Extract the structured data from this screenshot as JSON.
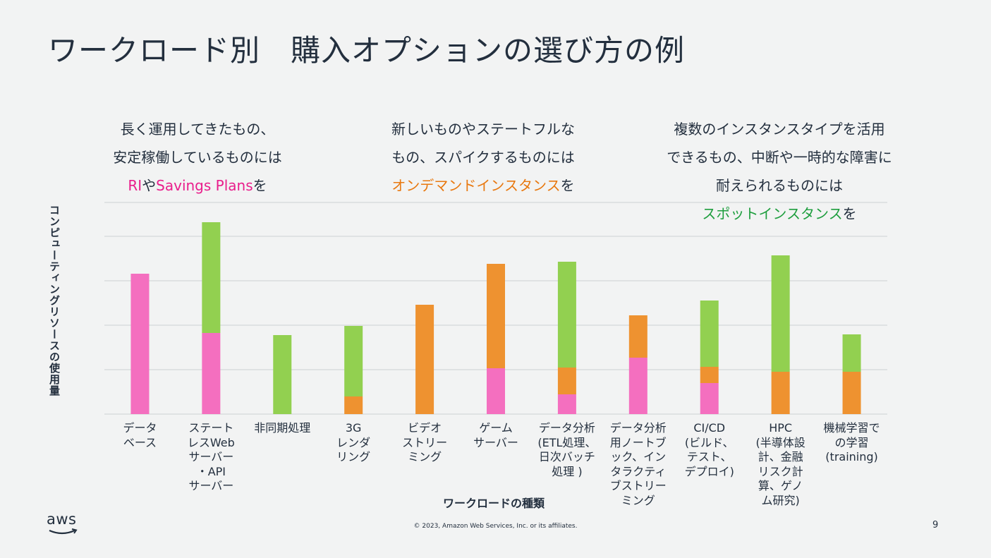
{
  "slide": {
    "title": "ワークロード別　購入オプションの選び方の例",
    "notes": [
      {
        "lines": [
          [
            {
              "t": "長く運用してきたもの、",
              "c": ""
            }
          ],
          [
            {
              "t": "安定稼働しているものには",
              "c": ""
            }
          ],
          [
            {
              "t": "RI",
              "c": "pink"
            },
            {
              "t": "や",
              "c": ""
            },
            {
              "t": "Savings Plans",
              "c": "pink"
            },
            {
              "t": "を",
              "c": ""
            }
          ]
        ]
      },
      {
        "lines": [
          [
            {
              "t": "新しいものやステートフルな",
              "c": ""
            }
          ],
          [
            {
              "t": "もの、スパイクするものには",
              "c": ""
            }
          ],
          [
            {
              "t": "オンデマンドインスタンス",
              "c": "orange"
            },
            {
              "t": "を",
              "c": ""
            }
          ]
        ]
      },
      {
        "lines": [
          [
            {
              "t": "複数のインスタンスタイプを活用",
              "c": ""
            }
          ],
          [
            {
              "t": "できるもの、中断や一時的な障害に",
              "c": ""
            }
          ],
          [
            {
              "t": "耐えられるものには",
              "c": ""
            }
          ],
          [
            {
              "t": "スポットインスタンス",
              "c": "green"
            },
            {
              "t": "を",
              "c": ""
            }
          ]
        ]
      }
    ],
    "copyright": "© 2023, Amazon Web Services, Inc. or its affiliates.",
    "page_number": "9",
    "logo_text": "aws"
  },
  "chart_data": {
    "type": "bar",
    "stacked": true,
    "ylabel": "コンピューティングリソースの使用量",
    "xlabel": "ワークロードの種類",
    "ylim": [
      0,
      300
    ],
    "grid": true,
    "categories": [
      "データ\nベース",
      "ステート\nレスWeb\nサーバー\n・API\nサーバー",
      "非同期処理",
      "3G\nレンダ\nリング",
      "ビデオ\nストリー\nミング",
      "ゲーム\nサーバー",
      "データ分析\n(ETL処理、\n日次バッチ\n処理 )",
      "データ分析\n用ノートブ\nック、イン\nタラクティ\nブストリー\nミング",
      "CI/CD\n(ビルド、\nテスト、\nデプロイ)",
      "HPC\n(半導体設\n計、金融\nリスク計\n算、ゲノ\nム研究)",
      "機械学習で\nの学習\n(training)"
    ],
    "series": [
      {
        "color": "#f46fbf",
        "values": [
          199,
          115,
          0,
          0,
          0,
          65,
          28,
          80,
          44,
          0,
          0
        ]
      },
      {
        "color": "#ee9230",
        "values": [
          0,
          0,
          0,
          25,
          155,
          148,
          38,
          60,
          23,
          60,
          60
        ]
      },
      {
        "color": "#92d050",
        "values": [
          0,
          157,
          112,
          100,
          0,
          0,
          150,
          0,
          94,
          165,
          53
        ]
      }
    ],
    "gridlines": [
      0,
      63,
      126,
      189,
      252,
      300
    ]
  },
  "colors": {
    "pink": "#e91e8c",
    "orange": "#e8780f",
    "green": "#1e9e3e",
    "text": "#232f3e"
  }
}
